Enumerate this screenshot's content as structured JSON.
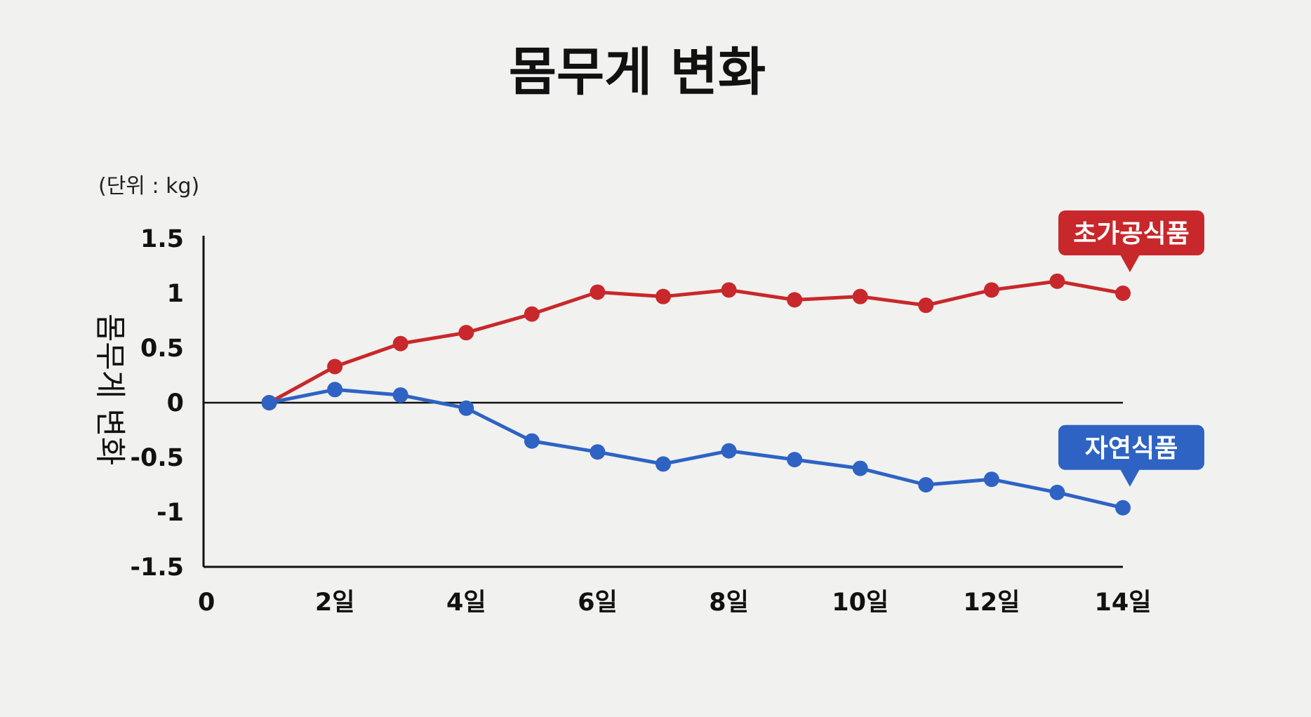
{
  "chart_data": {
    "type": "line",
    "title": "몸무게 변화",
    "unit_note": "(단위 : kg)",
    "ylabel": "몸무게 변화",
    "xlabel": "",
    "xlim": [
      0,
      14
    ],
    "ylim": [
      -1.5,
      1.5
    ],
    "y_ticks": [
      "1.5",
      "1",
      "0.5",
      "0",
      "-0.5",
      "-1",
      "-1.5"
    ],
    "x_ticks": [
      {
        "value": 0,
        "label": "0"
      },
      {
        "value": 2,
        "label": "2일"
      },
      {
        "value": 4,
        "label": "4일"
      },
      {
        "value": 6,
        "label": "6일"
      },
      {
        "value": 8,
        "label": "8일"
      },
      {
        "value": 10,
        "label": "10일"
      },
      {
        "value": 12,
        "label": "12일"
      },
      {
        "value": 14,
        "label": "14일"
      }
    ],
    "grid": false,
    "legend": "callouts at line ends",
    "series": [
      {
        "name": "초가공식품",
        "color": "#c8282b",
        "x": [
          1,
          2,
          3,
          4,
          5,
          6,
          7,
          8,
          9,
          10,
          11,
          12,
          13,
          14
        ],
        "y": [
          0.0,
          0.33,
          0.54,
          0.64,
          0.81,
          1.01,
          0.97,
          1.03,
          0.94,
          0.97,
          0.89,
          1.03,
          1.11,
          1.0
        ]
      },
      {
        "name": "자연식품",
        "color": "#2e63c4",
        "x": [
          1,
          2,
          3,
          4,
          5,
          6,
          7,
          8,
          9,
          10,
          11,
          12,
          13,
          14
        ],
        "y": [
          0.0,
          0.12,
          0.07,
          -0.05,
          -0.35,
          -0.45,
          -0.56,
          -0.44,
          -0.52,
          -0.6,
          -0.75,
          -0.7,
          -0.82,
          -0.96
        ]
      }
    ]
  }
}
